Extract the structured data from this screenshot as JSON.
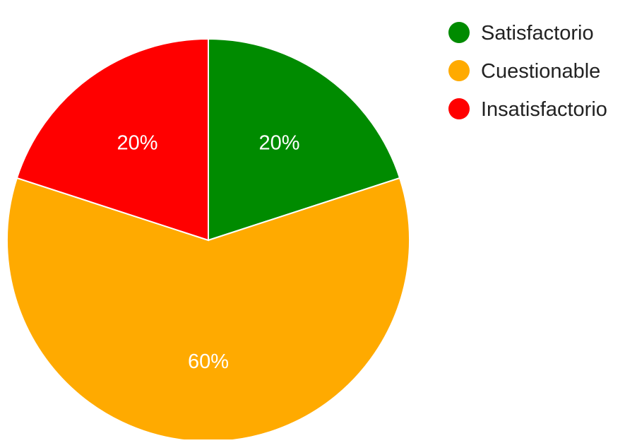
{
  "chart_data": {
    "type": "pie",
    "legend_position": "top-right",
    "categories": [
      "Satisfactorio",
      "Cuestionable",
      "Insatisfactorio"
    ],
    "values": [
      20,
      60,
      20
    ],
    "labels": [
      "20%",
      "60%",
      "20%"
    ],
    "colors": [
      "#008b00",
      "#ffaa00",
      "#ff0000"
    ],
    "title": ""
  }
}
